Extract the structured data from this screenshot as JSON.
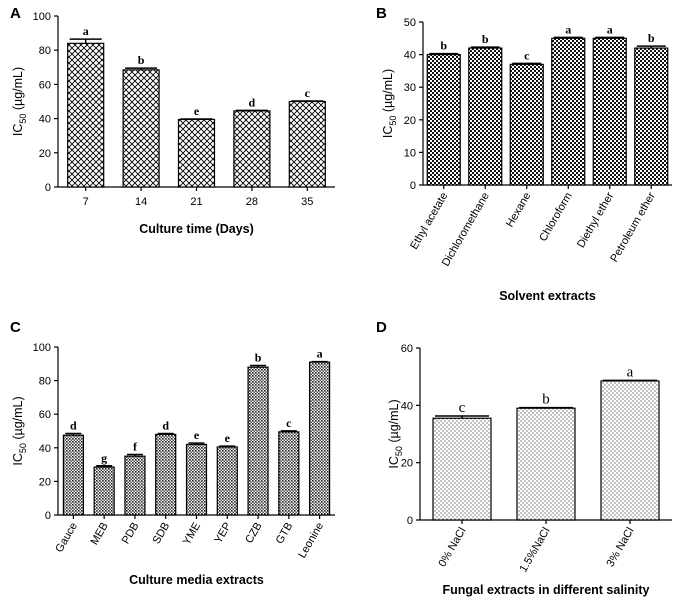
{
  "chart_data": [
    {
      "panel": "A",
      "type": "bar",
      "pattern": "crosshatch",
      "categories": [
        "7",
        "14",
        "21",
        "28",
        "35"
      ],
      "values": [
        84,
        68.5,
        39.5,
        44.5,
        50
      ],
      "errors": [
        2.5,
        1.0,
        0.3,
        0.3,
        0.3
      ],
      "letters": [
        "a",
        "b",
        "e",
        "d",
        "c"
      ],
      "xlabel": "Culture time (Days)",
      "ylabel_main": "IC",
      "ylabel_sub": "50",
      "ylabel_unit": " (µg/mL)",
      "ylim": [
        0,
        100
      ],
      "yticks": [
        0,
        20,
        40,
        60,
        80,
        100
      ],
      "rotate_x": false
    },
    {
      "panel": "B",
      "type": "bar",
      "pattern": "checker",
      "categories": [
        "Ethyl acetate",
        "Dichloromethane",
        "Hexane",
        "Chloroform",
        "Diethyl ether",
        "Petroleum ether"
      ],
      "values": [
        40,
        42,
        37,
        45,
        45,
        42
      ],
      "errors": [
        0.3,
        0.3,
        0.3,
        0.3,
        0.3,
        0.6
      ],
      "letters": [
        "b",
        "b",
        "c",
        "a",
        "a",
        "b"
      ],
      "xlabel": "Solvent extracts",
      "ylabel_main": "IC",
      "ylabel_sub": "50",
      "ylabel_unit": " (µg/mL)",
      "ylim": [
        0,
        50
      ],
      "yticks": [
        0,
        10,
        20,
        30,
        40,
        50
      ],
      "rotate_x": true
    },
    {
      "panel": "C",
      "type": "bar",
      "pattern": "dense",
      "categories": [
        "Gauce",
        "MEB",
        "PDB",
        "SDB",
        "YME",
        "YEP",
        "CZB",
        "GTB",
        "Leonine"
      ],
      "values": [
        47.5,
        28.5,
        35,
        48,
        42,
        40.5,
        88,
        49.5,
        91
      ],
      "errors": [
        1.0,
        0.8,
        1.0,
        0.5,
        0.8,
        0.5,
        1.0,
        0.6,
        0.3
      ],
      "letters": [
        "d",
        "g",
        "f",
        "d",
        "e",
        "e",
        "b",
        "c",
        "a"
      ],
      "xlabel": "Culture media extracts",
      "ylabel_main": "IC",
      "ylabel_sub": "50",
      "ylabel_unit": " (µg/mL)",
      "ylim": [
        0,
        100
      ],
      "yticks": [
        0,
        20,
        40,
        60,
        80,
        100
      ],
      "rotate_x": true
    },
    {
      "panel": "D",
      "type": "bar",
      "pattern": "dots",
      "categories": [
        "0% NaCl",
        "1.5%NaCl",
        "3% NaCl"
      ],
      "values": [
        35.5,
        39,
        48.5
      ],
      "errors": [
        0.8,
        0.2,
        0.2
      ],
      "letters": [
        "c",
        "b",
        "a"
      ],
      "xlabel": "Fungal extracts in different salinity",
      "ylabel_main": "IC",
      "ylabel_sub": "50",
      "ylabel_unit": " (µg/mL)",
      "ylim": [
        0,
        60
      ],
      "yticks": [
        0,
        20,
        40,
        60
      ],
      "rotate_x": true
    }
  ]
}
